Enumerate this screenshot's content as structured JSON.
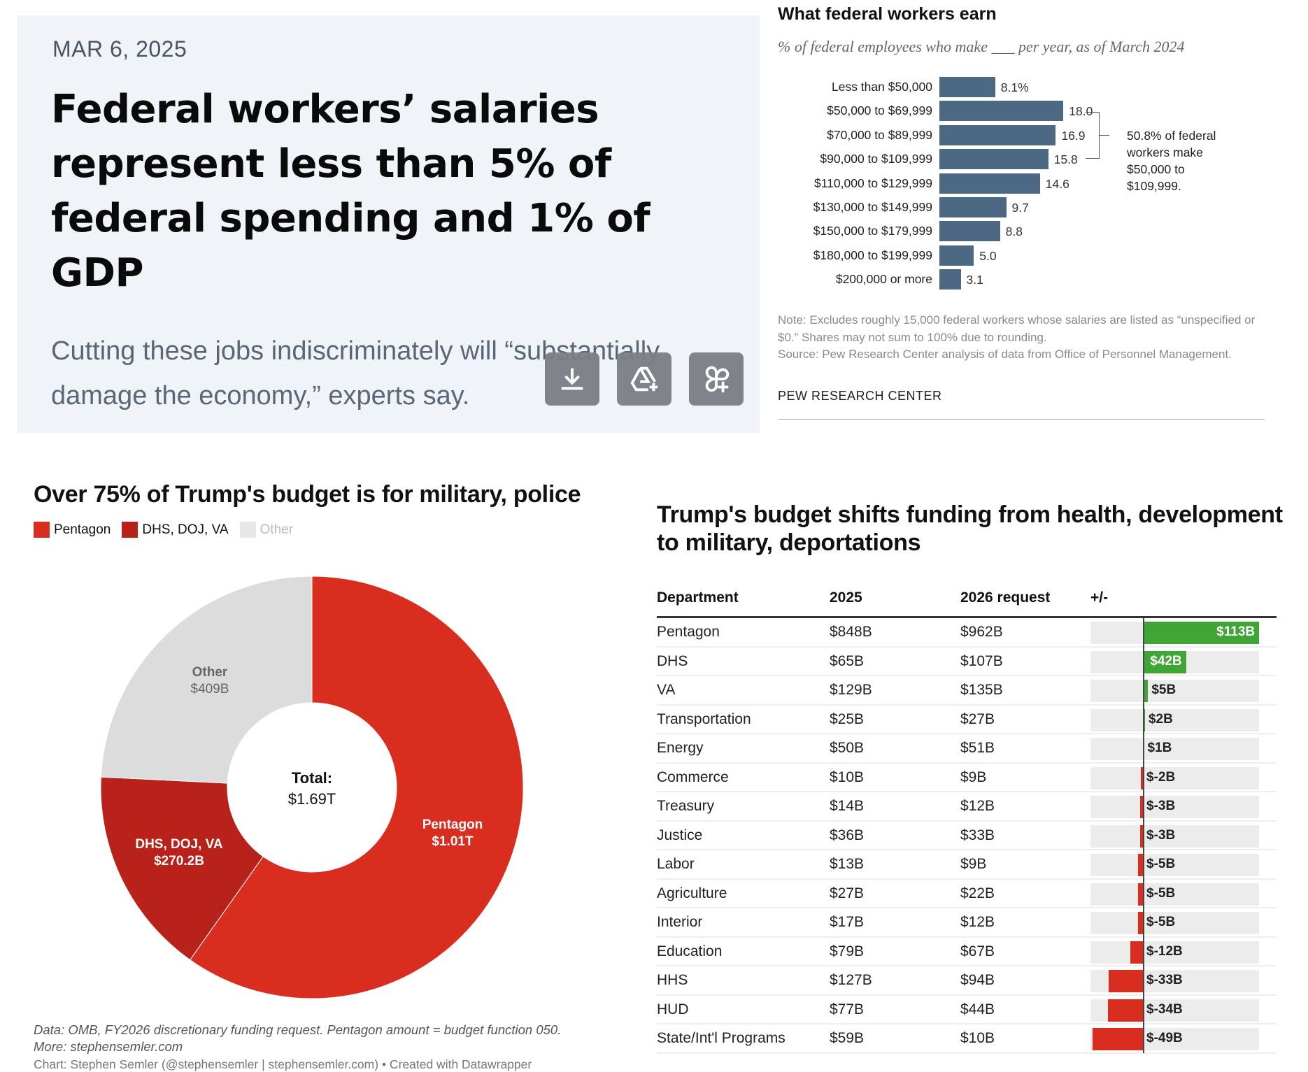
{
  "article": {
    "date": "MAR 6, 2025",
    "headline": "Federal workers’ salaries represent less than 5% of federal spending and 1% of GDP",
    "subheadline": "Cutting these jobs indiscriminately will “substantially damage the economy,” experts say.",
    "buttons": [
      "download-icon",
      "add-to-drive-icon",
      "add-to-collection-icon"
    ]
  },
  "chart_data": [
    {
      "type": "bar",
      "orientation": "horizontal",
      "title": "What federal workers earn",
      "subtitle": "% of federal employees who make ___ per year, as of March 2024",
      "categories": [
        "Less than $50,000",
        "$50,000 to $69,999",
        "$70,000 to $89,999",
        "$90,000 to $109,999",
        "$110,000 to $129,999",
        "$130,000 to $149,999",
        "$150,000 to $179,999",
        "$180,000 to $199,999",
        "$200,000 or more"
      ],
      "values": [
        8.1,
        18.0,
        16.9,
        15.8,
        14.6,
        9.7,
        8.8,
        5.0,
        3.1
      ],
      "value_labels": [
        "8.1%",
        "18.0",
        "16.9",
        "15.8",
        "14.6",
        "9.7",
        "8.8",
        "5.0",
        "3.1"
      ],
      "annotation": "50.8% of federal workers make $50,000 to $109,999.",
      "note": "Note: Excludes roughly 15,000 federal workers whose salaries are listed as “unspecified or $0.” Shares may not sum to 100% due to rounding.",
      "source": "Source: Pew Research Center analysis of data from Office of Personnel Management.",
      "brand": "PEW RESEARCH CENTER",
      "color": "#4d6883"
    },
    {
      "type": "pie",
      "donut": true,
      "title": "Over 75% of Trump's budget is for military, police",
      "legend": [
        {
          "name": "Pentagon",
          "color": "#d92d20"
        },
        {
          "name": "DHS, DOJ, VA",
          "color": "#b8221a"
        },
        {
          "name": "Other",
          "color": "#e0e0e0"
        }
      ],
      "slices": [
        {
          "name": "Pentagon",
          "value": 1010,
          "label": "$1.01T",
          "color": "#d92d20"
        },
        {
          "name": "DHS, DOJ, VA",
          "value": 270.2,
          "label": "$270.2B",
          "color": "#b8221a"
        },
        {
          "name": "Other",
          "value": 409,
          "label": "$409B",
          "color": "#dcdcdc"
        }
      ],
      "center_label": "Total:",
      "center_value": "$1.69T",
      "note": "Data: OMB, FY2026 discretionary funding request. Pentagon amount = budget function 050.",
      "more": "More: stephensemler.com",
      "credit": "Chart: Stephen Semler (@stephensemler | stephensemler.com) • Created with Datawrapper"
    },
    {
      "type": "table",
      "title": "Trump's budget shifts funding from health, development to military, deportations",
      "columns": [
        "Department",
        "2025",
        "2026 request",
        "+/-"
      ],
      "rows": [
        [
          "Pentagon",
          "$848B",
          "$962B",
          113,
          "$113B"
        ],
        [
          "DHS",
          "$65B",
          "$107B",
          42,
          "$42B"
        ],
        [
          "VA",
          "$129B",
          "$135B",
          5,
          "$5B"
        ],
        [
          "Transportation",
          "$25B",
          "$27B",
          2,
          "$2B"
        ],
        [
          "Energy",
          "$50B",
          "$51B",
          1,
          "$1B"
        ],
        [
          "Commerce",
          "$10B",
          "$9B",
          -2,
          "$-2B"
        ],
        [
          "Treasury",
          "$14B",
          "$12B",
          -3,
          "$-3B"
        ],
        [
          "Justice",
          "$36B",
          "$33B",
          -3,
          "$-3B"
        ],
        [
          "Labor",
          "$13B",
          "$9B",
          -5,
          "$-5B"
        ],
        [
          "Agriculture",
          "$27B",
          "$22B",
          -5,
          "$-5B"
        ],
        [
          "Interior",
          "$17B",
          "$12B",
          -5,
          "$-5B"
        ],
        [
          "Education",
          "$79B",
          "$67B",
          -12,
          "$-12B"
        ],
        [
          "HHS",
          "$127B",
          "$94B",
          -33,
          "$-33B"
        ],
        [
          "HUD",
          "$77B",
          "$44B",
          -34,
          "$-34B"
        ],
        [
          "State/Int'l Programs",
          "$59B",
          "$10B",
          -49,
          "$-49B"
        ]
      ],
      "positive_color": "#3fa535",
      "negative_color": "#d92d20"
    }
  ]
}
